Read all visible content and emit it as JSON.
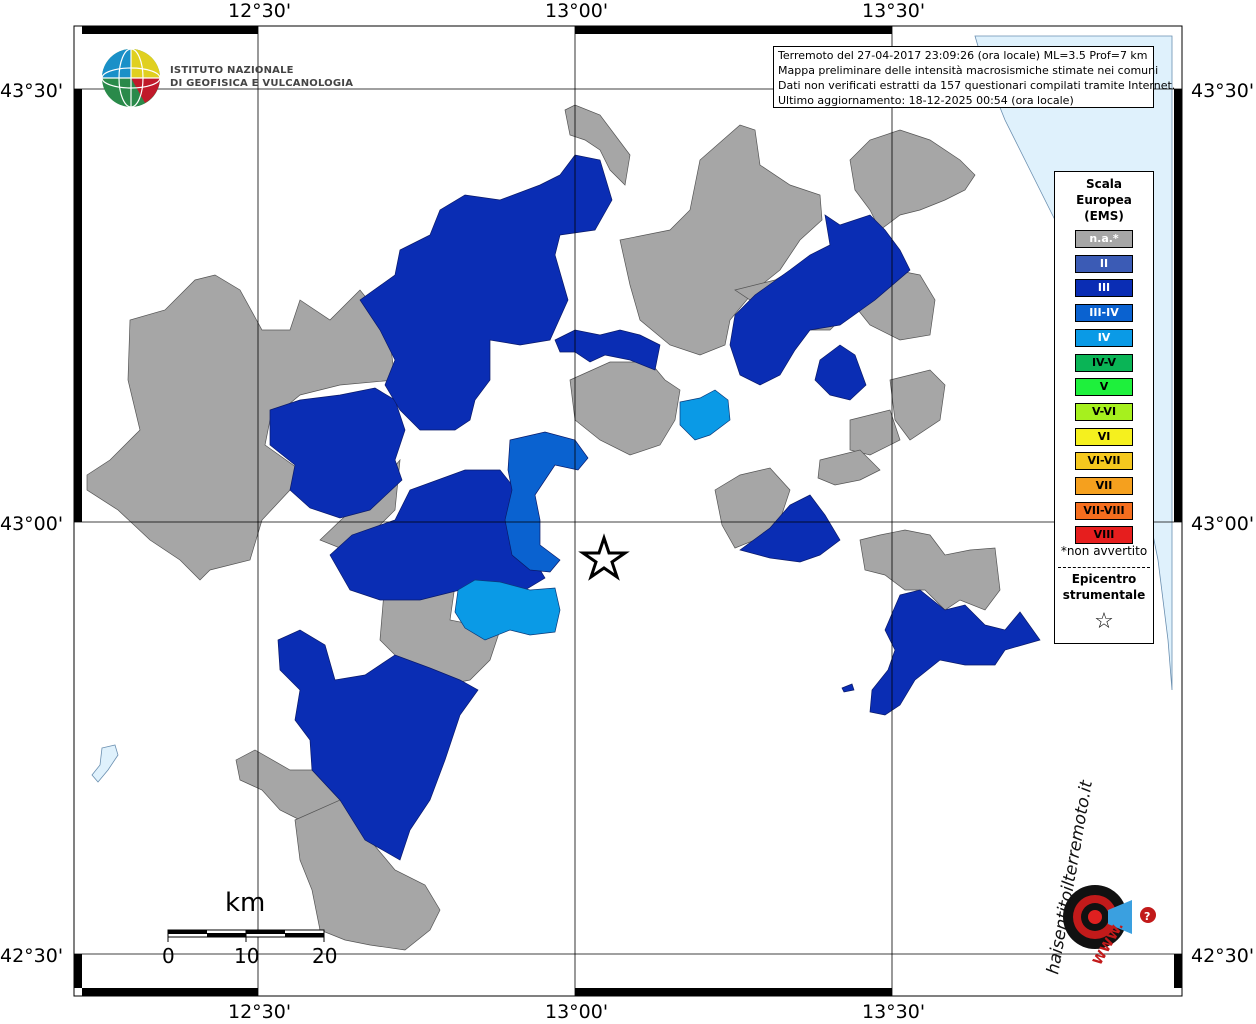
{
  "title": {
    "line1": "Terremoto del 27-04-2017 23:09:26 (ora locale) ML=3.5 Prof=7 km",
    "line2": "Mappa preliminare delle intensità macrosismiche stimate nei comuni",
    "line3": "Dati non verificati estratti da 157 questionari compilati tramite Internet.",
    "line4": "Ultimo aggiornamento: 18-12-2025 00:54 (ora locale)"
  },
  "logo": {
    "line1": "ISTITUTO NAZIONALE",
    "line2": "DI GEOFISICA E VULCANOLOGIA"
  },
  "axes": {
    "top": [
      "12°30'",
      "13°00'",
      "13°30'"
    ],
    "bottom": [
      "12°30'",
      "13°00'",
      "13°30'"
    ],
    "left": [
      "43°30'",
      "43°00'",
      "42°30'"
    ],
    "right": [
      "43°30'",
      "43°00'",
      "42°30'"
    ]
  },
  "legend": {
    "title1": "Scala",
    "title2": "Europea",
    "title3": "(EMS)",
    "items": [
      {
        "label": "n.a.*",
        "color": "#a6a6a6",
        "text": "#ffffff"
      },
      {
        "label": "II",
        "color": "#3b5bb5",
        "text": "#ffffff"
      },
      {
        "label": "III",
        "color": "#0a2db4",
        "text": "#ffffff"
      },
      {
        "label": "III-IV",
        "color": "#0a62d0",
        "text": "#ffffff"
      },
      {
        "label": "IV",
        "color": "#0a9ae6",
        "text": "#ffffff"
      },
      {
        "label": "IV-V",
        "color": "#0ab456",
        "text": "#000000"
      },
      {
        "label": "V",
        "color": "#1ef03c",
        "text": "#000000"
      },
      {
        "label": "V-VI",
        "color": "#a6f01e",
        "text": "#000000"
      },
      {
        "label": "VI",
        "color": "#f5f01e",
        "text": "#000000"
      },
      {
        "label": "VI-VII",
        "color": "#f5c81e",
        "text": "#000000"
      },
      {
        "label": "VII",
        "color": "#f5a01e",
        "text": "#000000"
      },
      {
        "label": "VII-VIII",
        "color": "#f56e1e",
        "text": "#000000"
      },
      {
        "label": "VIII",
        "color": "#e61e1e",
        "text": "#000000"
      }
    ],
    "note": "*non avvertito",
    "epicenter1": "Epicentro",
    "epicenter2": "strumentale",
    "star": "☆"
  },
  "scale": {
    "unit": "km",
    "ticks": [
      "0",
      "10",
      "20"
    ]
  },
  "watermark": {
    "text": "haisentitoilterremoto.it",
    "url": "WWW."
  },
  "colors": {
    "na": "#a6a6a6",
    "iii": "#0a2db4",
    "iii_iv": "#0a62d0",
    "iv": "#0a9ae6",
    "sea": "#dff1fc"
  }
}
